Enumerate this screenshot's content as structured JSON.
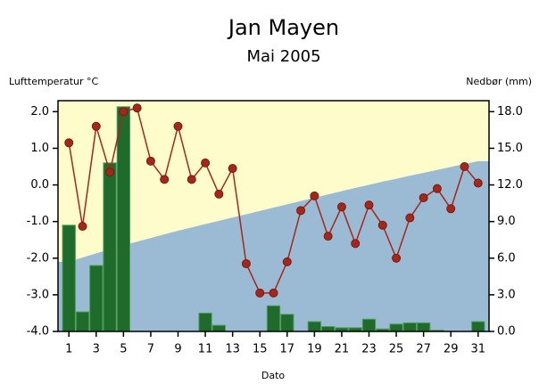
{
  "chart_data": {
    "type": "line",
    "title": "Jan Mayen",
    "subtitle": "Mai 2005",
    "y_label": "Lufttemperatur °C",
    "y2_label": "Nedbør (mm)",
    "x_label": "Dato",
    "x": [
      1,
      2,
      3,
      4,
      5,
      6,
      7,
      8,
      9,
      10,
      11,
      12,
      13,
      14,
      15,
      16,
      17,
      18,
      19,
      20,
      21,
      22,
      23,
      24,
      25,
      26,
      27,
      28,
      29,
      30,
      31
    ],
    "xlim": [
      0.2,
      31.8
    ],
    "xticks": [
      1,
      3,
      5,
      7,
      9,
      11,
      13,
      15,
      17,
      19,
      21,
      23,
      25,
      27,
      29,
      31
    ],
    "ylim": [
      -4,
      2.3
    ],
    "yticks": [
      {
        "value": -4,
        "label": "-4.0"
      },
      {
        "value": -3,
        "label": "-3.0"
      },
      {
        "value": -2,
        "label": "-2.0"
      },
      {
        "value": -1,
        "label": "-1.0"
      },
      {
        "value": 0,
        "label": "0.0"
      },
      {
        "value": 1,
        "label": "1.0"
      },
      {
        "value": 2,
        "label": "2.0"
      }
    ],
    "y2lim": [
      0,
      18.9
    ],
    "y2ticks": [
      {
        "value": 0,
        "label": "0.0"
      },
      {
        "value": 3,
        "label": "3.0"
      },
      {
        "value": 6,
        "label": "6.0"
      },
      {
        "value": 9,
        "label": "9.0"
      },
      {
        "value": 12,
        "label": "12.0"
      },
      {
        "value": 15,
        "label": "15.0"
      },
      {
        "value": 18,
        "label": "18.0"
      }
    ],
    "background_color": "#fffccc",
    "normal": {
      "color": "#9bbad4",
      "values": [
        -2.1,
        -1.98,
        -1.87,
        -1.76,
        -1.65,
        -1.55,
        -1.45,
        -1.35,
        -1.25,
        -1.16,
        -1.07,
        -0.98,
        -0.89,
        -0.8,
        -0.71,
        -0.62,
        -0.53,
        -0.44,
        -0.35,
        -0.26,
        -0.17,
        -0.08,
        0.0,
        0.09,
        0.17,
        0.25,
        0.33,
        0.41,
        0.49,
        0.57,
        0.65
      ]
    },
    "series": [
      {
        "type": "bar",
        "axis": "y2",
        "color": "#1e6b2c",
        "values": [
          8.7,
          1.6,
          5.4,
          13.8,
          18.4,
          0,
          0,
          0,
          0,
          0,
          1.5,
          0.5,
          0,
          0,
          0,
          2.1,
          1.4,
          0,
          0.8,
          0.4,
          0.3,
          0.3,
          1.0,
          0.2,
          0.6,
          0.7,
          0.7,
          0.1,
          0,
          0,
          0.8
        ]
      },
      {
        "type": "line",
        "axis": "y",
        "color": "#a3281c",
        "values": [
          1.15,
          -1.13,
          1.6,
          0.35,
          2.0,
          2.1,
          0.65,
          0.15,
          1.6,
          0.15,
          0.6,
          -0.25,
          0.45,
          -2.15,
          -2.95,
          -2.95,
          -2.1,
          -0.7,
          -0.3,
          -1.4,
          -0.6,
          -1.6,
          -0.55,
          -1.1,
          -2.0,
          -0.9,
          -0.35,
          -0.1,
          -0.65,
          0.5,
          0.05
        ]
      }
    ]
  }
}
